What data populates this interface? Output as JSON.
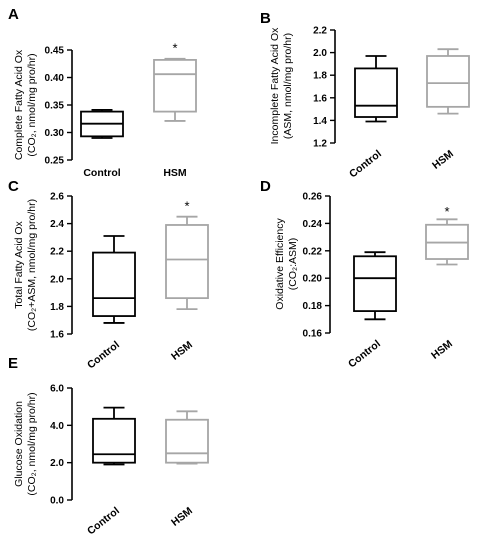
{
  "figure": {
    "panels": [
      "A",
      "B",
      "C",
      "D",
      "E"
    ]
  },
  "chart_data": [
    {
      "panel": "A",
      "type": "box",
      "ylabel_line1": "Complete Fatty Acid Ox",
      "ylabel_line2": "(CO₂, nmol/mg pro/hr)",
      "ylim": [
        0.25,
        0.45
      ],
      "yticks": [
        0.25,
        0.3,
        0.35,
        0.4,
        0.45
      ],
      "tick_labels": [
        "0.25",
        "0.30",
        "0.35",
        "0.40",
        "0.45"
      ],
      "categories": [
        "Control",
        "HSM"
      ],
      "colors": [
        "#000000",
        "#a6a6a6"
      ],
      "boxes": [
        {
          "min": 0.29,
          "q1": 0.293,
          "median": 0.316,
          "q3": 0.338,
          "max": 0.341
        },
        {
          "min": 0.321,
          "q1": 0.338,
          "median": 0.406,
          "q3": 0.432,
          "max": 0.434
        }
      ],
      "significance": [
        "",
        "*"
      ],
      "sig_y": 0.455
    },
    {
      "panel": "B",
      "type": "box",
      "ylabel_line1": "Incomplete Fatty Acid Ox",
      "ylabel_line2": "(ASM, nmol/mg pro/hr)",
      "ylim": [
        1.2,
        2.2
      ],
      "yticks": [
        1.2,
        1.4,
        1.6,
        1.8,
        2.0,
        2.2
      ],
      "tick_labels": [
        "1.2",
        "1.4",
        "1.6",
        "1.8",
        "2.0",
        "2.2"
      ],
      "categories": [
        "Control",
        "HSM"
      ],
      "colors": [
        "#000000",
        "#a6a6a6"
      ],
      "boxes": [
        {
          "min": 1.39,
          "q1": 1.43,
          "median": 1.53,
          "q3": 1.86,
          "max": 1.97
        },
        {
          "min": 1.46,
          "q1": 1.52,
          "median": 1.73,
          "q3": 1.97,
          "max": 2.03
        }
      ],
      "significance": [
        "",
        ""
      ],
      "sig_y": 2.1
    },
    {
      "panel": "C",
      "type": "box",
      "ylabel_line1": "Total Fatty Acid Ox",
      "ylabel_line2": "(CO₂+ASM, nmol/mg pro/hr)",
      "ylim": [
        1.6,
        2.6
      ],
      "yticks": [
        1.6,
        1.8,
        2.0,
        2.2,
        2.4,
        2.6
      ],
      "tick_labels": [
        "1.6",
        "1.8",
        "2.0",
        "2.2",
        "2.4",
        "2.6"
      ],
      "categories": [
        "Control",
        "HSM"
      ],
      "colors": [
        "#000000",
        "#a6a6a6"
      ],
      "boxes": [
        {
          "min": 1.68,
          "q1": 1.73,
          "median": 1.86,
          "q3": 2.19,
          "max": 2.31
        },
        {
          "min": 1.78,
          "q1": 1.86,
          "median": 2.14,
          "q3": 2.39,
          "max": 2.45
        }
      ],
      "significance": [
        "",
        "*"
      ],
      "sig_y": 2.53
    },
    {
      "panel": "D",
      "type": "box",
      "ylabel_line1": "Oxidative Efficiency",
      "ylabel_line2": "(CO₂:ASM)",
      "ylim": [
        0.16,
        0.26
      ],
      "yticks": [
        0.16,
        0.18,
        0.2,
        0.22,
        0.24,
        0.26
      ],
      "tick_labels": [
        "0.16",
        "0.18",
        "0.20",
        "0.22",
        "0.24",
        "0.26"
      ],
      "categories": [
        "Control",
        "HSM"
      ],
      "colors": [
        "#000000",
        "#a6a6a6"
      ],
      "boxes": [
        {
          "min": 0.17,
          "q1": 0.176,
          "median": 0.2,
          "q3": 0.216,
          "max": 0.219
        },
        {
          "min": 0.21,
          "q1": 0.214,
          "median": 0.226,
          "q3": 0.239,
          "max": 0.243
        }
      ],
      "significance": [
        "",
        "*"
      ],
      "sig_y": 0.249
    },
    {
      "panel": "E",
      "type": "box",
      "ylabel_line1": "Glucose Oxidation",
      "ylabel_line2": "(CO₂, nmol/mg pro/hr)",
      "ylim": [
        0.0,
        6.0
      ],
      "yticks": [
        0.0,
        2.0,
        4.0,
        6.0
      ],
      "tick_labels": [
        "0.0",
        "2.0",
        "4.0",
        "6.0"
      ],
      "categories": [
        "Control",
        "HSM"
      ],
      "colors": [
        "#000000",
        "#a6a6a6"
      ],
      "boxes": [
        {
          "min": 1.9,
          "q1": 2.0,
          "median": 2.45,
          "q3": 4.35,
          "max": 4.95
        },
        {
          "min": 1.95,
          "q1": 2.0,
          "median": 2.5,
          "q3": 4.3,
          "max": 4.75
        }
      ],
      "significance": [
        "",
        ""
      ],
      "sig_y": 5.2
    }
  ]
}
